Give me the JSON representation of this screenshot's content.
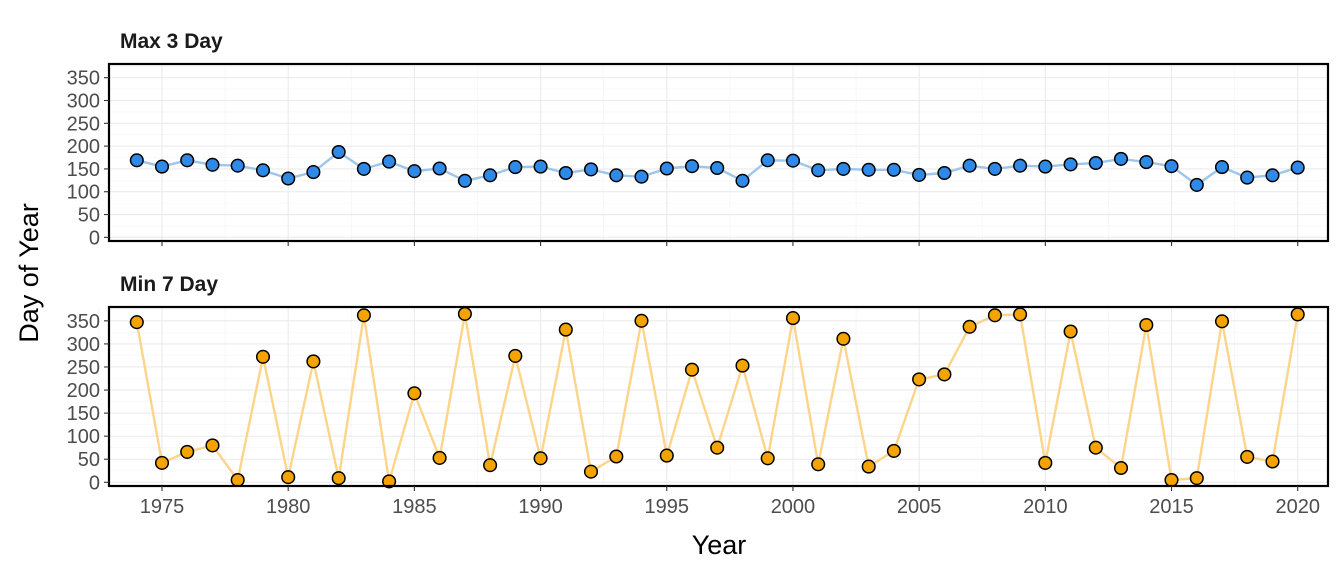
{
  "chart_data": [
    {
      "type": "line",
      "title": "Max 3 Day",
      "ylabel": "Day of Year",
      "xlabel": "Year",
      "ylim": [
        -8,
        380
      ],
      "xlim": [
        1972.9,
        2021.2
      ],
      "y_ticks": [
        0,
        50,
        100,
        150,
        200,
        250,
        300,
        350
      ],
      "x_ticks": [
        1975,
        1980,
        1985,
        1990,
        1995,
        2000,
        2005,
        2010,
        2015,
        2020
      ],
      "grid": true,
      "line_color": "#9ec5ea",
      "point_color": "#2e8ae6",
      "x": [
        1974,
        1975,
        1976,
        1977,
        1978,
        1979,
        1980,
        1981,
        1982,
        1983,
        1984,
        1985,
        1986,
        1987,
        1988,
        1989,
        1990,
        1991,
        1992,
        1993,
        1994,
        1995,
        1996,
        1997,
        1998,
        1999,
        2000,
        2001,
        2002,
        2003,
        2004,
        2005,
        2006,
        2007,
        2008,
        2009,
        2010,
        2011,
        2012,
        2013,
        2014,
        2015,
        2016,
        2017,
        2018,
        2019,
        2020
      ],
      "values": [
        169,
        155,
        169,
        159,
        157,
        147,
        129,
        143,
        187,
        150,
        166,
        145,
        151,
        124,
        136,
        154,
        155,
        141,
        149,
        136,
        133,
        151,
        156,
        152,
        124,
        169,
        168,
        147,
        150,
        148,
        148,
        137,
        141,
        157,
        150,
        157,
        155,
        160,
        163,
        172,
        165,
        156,
        115,
        154,
        131,
        136,
        153
      ]
    },
    {
      "type": "line",
      "title": "Min 7 Day",
      "ylabel": "Day of Year",
      "xlabel": "Year",
      "ylim": [
        -8,
        380
      ],
      "xlim": [
        1972.9,
        2021.2
      ],
      "y_ticks": [
        0,
        50,
        100,
        150,
        200,
        250,
        300,
        350
      ],
      "x_ticks": [
        1975,
        1980,
        1985,
        1990,
        1995,
        2000,
        2005,
        2010,
        2015,
        2020
      ],
      "grid": true,
      "line_color": "#fdd58a",
      "point_color": "#f5a300",
      "x": [
        1974,
        1975,
        1976,
        1977,
        1978,
        1979,
        1980,
        1981,
        1982,
        1983,
        1984,
        1985,
        1986,
        1987,
        1988,
        1989,
        1990,
        1991,
        1992,
        1993,
        1994,
        1995,
        1996,
        1997,
        1998,
        1999,
        2000,
        2001,
        2002,
        2003,
        2004,
        2005,
        2006,
        2007,
        2008,
        2009,
        2010,
        2011,
        2012,
        2013,
        2014,
        2015,
        2016,
        2017,
        2018,
        2019,
        2020
      ],
      "values": [
        347,
        42,
        66,
        80,
        5,
        272,
        11,
        262,
        9,
        362,
        2,
        193,
        53,
        365,
        37,
        274,
        52,
        331,
        23,
        56,
        350,
        58,
        244,
        75,
        253,
        52,
        356,
        39,
        311,
        34,
        68,
        223,
        234,
        337,
        362,
        364,
        42,
        327,
        75,
        31,
        341,
        5,
        9,
        349,
        55,
        45,
        364
      ]
    }
  ]
}
